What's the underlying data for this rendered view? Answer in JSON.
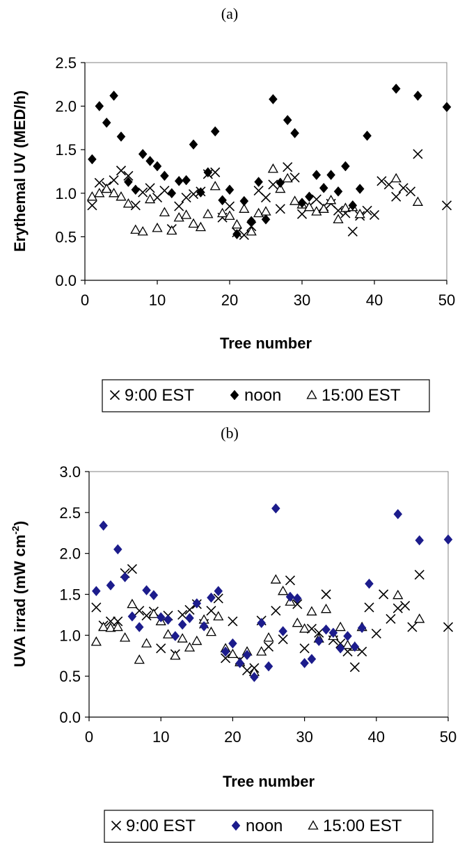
{
  "chart_data": [
    {
      "type": "scatter",
      "panel_label": "(a)",
      "xlabel": "Tree number",
      "ylabel": "Erythemal UV (MED/h)",
      "xlim": [
        0,
        50
      ],
      "ylim": [
        0,
        2.5
      ],
      "xticks": [
        "0",
        "10",
        "20",
        "30",
        "40",
        "50"
      ],
      "yticks": [
        "0.0",
        "0.5",
        "1.0",
        "1.5",
        "2.0",
        "2.5"
      ],
      "legend_position": "bottom",
      "series": [
        {
          "name": "9:00 EST",
          "marker": "x",
          "color": "#000000",
          "x": [
            1,
            2,
            3,
            4,
            5,
            6,
            7,
            8,
            9,
            10,
            11,
            12,
            13,
            14,
            15,
            16,
            17,
            18,
            19,
            20,
            21,
            22,
            23,
            24,
            25,
            26,
            27,
            28,
            29,
            30,
            31,
            32,
            33,
            34,
            35,
            36,
            37,
            38,
            39,
            40,
            41,
            42,
            43,
            44,
            45,
            46,
            50
          ],
          "y": [
            0.86,
            1.12,
            1.08,
            1.15,
            1.26,
            1.2,
            0.86,
            1.01,
            1.06,
            0.95,
            1.03,
            0.59,
            0.85,
            0.95,
            0.99,
            1.02,
            1.22,
            1.24,
            0.72,
            0.85,
            0.55,
            0.52,
            0.62,
            1.03,
            0.95,
            1.1,
            0.82,
            1.3,
            1.18,
            0.76,
            0.85,
            0.93,
            0.85,
            0.88,
            0.8,
            0.77,
            0.56,
            0.74,
            0.8,
            0.75,
            1.14,
            1.1,
            0.96,
            1.06,
            1.02,
            1.45,
            0.86
          ]
        },
        {
          "name": "noon",
          "marker": "diamond",
          "color": "#000000",
          "x": [
            1,
            2,
            3,
            4,
            5,
            6,
            7,
            8,
            9,
            10,
            11,
            12,
            13,
            14,
            15,
            16,
            17,
            18,
            19,
            20,
            21,
            22,
            23,
            24,
            25,
            26,
            27,
            28,
            29,
            30,
            31,
            32,
            33,
            34,
            35,
            36,
            37,
            38,
            39,
            43,
            46,
            50
          ],
          "y": [
            1.39,
            2.0,
            1.81,
            2.12,
            1.65,
            1.13,
            1.04,
            1.45,
            1.37,
            1.31,
            1.2,
            1.0,
            1.14,
            1.15,
            1.56,
            1.01,
            1.24,
            1.71,
            0.92,
            1.04,
            0.53,
            0.91,
            0.68,
            1.13,
            0.7,
            2.08,
            1.12,
            1.84,
            1.69,
            0.89,
            0.96,
            1.21,
            1.06,
            1.21,
            1.02,
            1.31,
            0.86,
            1.05,
            1.66,
            2.2,
            2.12,
            1.99
          ]
        },
        {
          "name": "15:00 EST",
          "marker": "triangle",
          "color": "#000000",
          "x": [
            1,
            2,
            3,
            4,
            5,
            6,
            7,
            8,
            9,
            10,
            11,
            12,
            13,
            14,
            15,
            16,
            17,
            18,
            19,
            20,
            21,
            22,
            23,
            24,
            25,
            26,
            27,
            28,
            29,
            30,
            31,
            32,
            33,
            34,
            35,
            36,
            37,
            38,
            43,
            46
          ],
          "y": [
            0.96,
            1.0,
            1.05,
            1.0,
            0.96,
            0.88,
            0.58,
            0.56,
            0.93,
            0.6,
            0.78,
            0.57,
            0.72,
            0.75,
            0.65,
            0.61,
            0.76,
            1.08,
            0.77,
            0.74,
            0.64,
            0.82,
            0.56,
            0.77,
            0.79,
            1.28,
            1.05,
            1.17,
            0.91,
            0.87,
            0.84,
            0.79,
            0.82,
            0.92,
            0.7,
            0.83,
            0.84,
            0.76,
            1.17,
            0.9
          ]
        }
      ]
    },
    {
      "type": "scatter",
      "panel_label": "(b)",
      "xlabel": "Tree number",
      "ylabel": "UVA irrad (mW cm",
      "ylabel_sup": "-2",
      "ylabel_end": ")",
      "xlim": [
        0,
        50
      ],
      "ylim": [
        0,
        3
      ],
      "xticks": [
        "0",
        "10",
        "20",
        "30",
        "40",
        "50"
      ],
      "yticks": [
        "0.0",
        "0.5",
        "1.0",
        "1.5",
        "2.0",
        "2.5",
        "3.0"
      ],
      "legend_position": "bottom",
      "series": [
        {
          "name": "9:00 EST",
          "marker": "x",
          "color": "#000000",
          "x": [
            1,
            2,
            3,
            4,
            5,
            6,
            7,
            8,
            9,
            10,
            11,
            12,
            13,
            14,
            15,
            16,
            17,
            18,
            19,
            20,
            21,
            22,
            23,
            24,
            25,
            26,
            27,
            28,
            29,
            30,
            31,
            32,
            33,
            34,
            35,
            36,
            37,
            38,
            39,
            40,
            41,
            42,
            43,
            44,
            45,
            46,
            50
          ],
          "y": [
            1.34,
            1.12,
            1.17,
            1.17,
            1.76,
            1.81,
            1.3,
            1.24,
            1.29,
            0.84,
            1.24,
            0.77,
            1.25,
            1.31,
            1.38,
            1.14,
            1.3,
            1.45,
            0.72,
            1.17,
            0.7,
            0.57,
            0.6,
            1.18,
            0.86,
            1.3,
            0.95,
            1.67,
            1.38,
            0.84,
            1.08,
            1.03,
            1.5,
            0.94,
            0.9,
            0.8,
            0.61,
            0.8,
            1.34,
            1.02,
            1.5,
            1.2,
            1.33,
            1.36,
            1.1,
            1.74,
            1.1
          ]
        },
        {
          "name": "noon",
          "marker": "diamond",
          "color": "#1c1c8c",
          "x": [
            1,
            2,
            3,
            4,
            5,
            6,
            7,
            8,
            9,
            10,
            11,
            12,
            13,
            14,
            15,
            16,
            17,
            18,
            19,
            20,
            21,
            22,
            23,
            24,
            25,
            26,
            27,
            28,
            29,
            30,
            31,
            32,
            33,
            34,
            35,
            36,
            37,
            38,
            39,
            43,
            46,
            50
          ],
          "y": [
            1.54,
            2.34,
            1.61,
            2.05,
            1.71,
            1.23,
            1.1,
            1.55,
            1.49,
            1.22,
            1.19,
            0.99,
            1.13,
            1.21,
            1.39,
            1.11,
            1.46,
            1.54,
            0.8,
            0.9,
            0.66,
            0.76,
            0.49,
            1.15,
            0.62,
            2.55,
            1.05,
            1.47,
            1.45,
            0.66,
            0.71,
            0.93,
            1.07,
            1.03,
            0.84,
            0.99,
            0.86,
            1.09,
            1.63,
            2.48,
            2.16,
            2.17
          ]
        },
        {
          "name": "15:00 EST",
          "marker": "triangle",
          "color": "#000000",
          "x": [
            1,
            2,
            3,
            4,
            5,
            6,
            7,
            8,
            9,
            10,
            11,
            12,
            13,
            14,
            15,
            16,
            17,
            18,
            19,
            20,
            21,
            22,
            23,
            24,
            25,
            26,
            27,
            28,
            29,
            30,
            31,
            32,
            33,
            34,
            35,
            36,
            37,
            38,
            43,
            46
          ],
          "y": [
            0.92,
            1.1,
            1.09,
            1.1,
            0.97,
            1.38,
            0.7,
            0.9,
            1.26,
            1.17,
            1.01,
            0.75,
            0.96,
            0.85,
            0.93,
            1.19,
            1.04,
            1.23,
            0.84,
            0.77,
            0.67,
            0.8,
            0.55,
            0.8,
            0.97,
            1.68,
            1.54,
            1.41,
            1.15,
            1.08,
            1.29,
            0.96,
            1.32,
            0.99,
            1.1,
            0.88,
            0.86,
            1.1,
            1.49,
            1.2
          ]
        }
      ]
    }
  ]
}
